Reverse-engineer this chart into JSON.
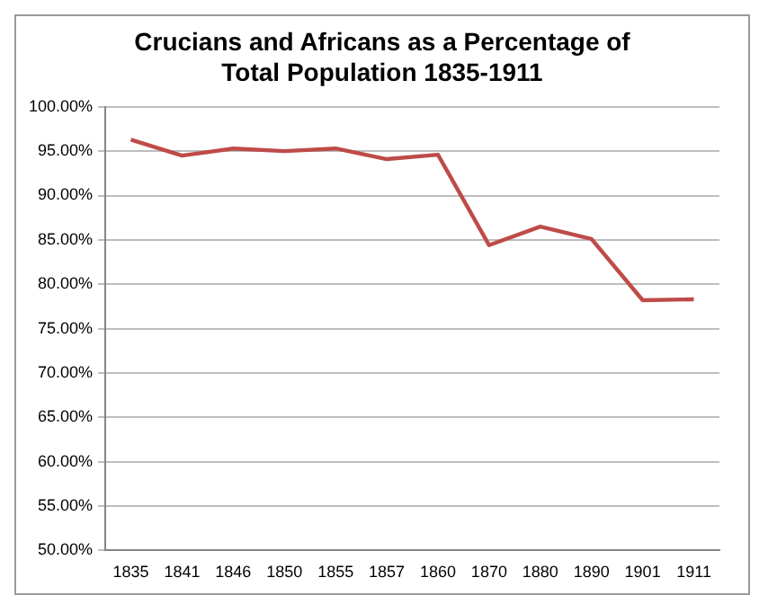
{
  "chart_data": {
    "type": "line",
    "title": "Crucians and Africans as a Percentage of Total Population 1835-1911",
    "categories": [
      "1835",
      "1841",
      "1846",
      "1850",
      "1855",
      "1857",
      "1860",
      "1870",
      "1880",
      "1890",
      "1901",
      "1911"
    ],
    "series": [
      {
        "color": "#be4b48",
        "values": [
          96.3,
          94.5,
          95.3,
          95.0,
          95.3,
          94.1,
          94.6,
          84.4,
          86.5,
          85.1,
          78.2,
          78.3
        ]
      }
    ],
    "ylim": [
      50,
      100
    ],
    "yticks": [
      {
        "value": 50,
        "label": "50.00%"
      },
      {
        "value": 55,
        "label": "55.00%"
      },
      {
        "value": 60,
        "label": "60.00%"
      },
      {
        "value": 65,
        "label": "65.00%"
      },
      {
        "value": 70,
        "label": "70.00%"
      },
      {
        "value": 75,
        "label": "75.00%"
      },
      {
        "value": 80,
        "label": "80.00%"
      },
      {
        "value": 85,
        "label": "85.00%"
      },
      {
        "value": 90,
        "label": "90.00%"
      },
      {
        "value": 95,
        "label": "95.00%"
      },
      {
        "value": 100,
        "label": "100.00%"
      }
    ],
    "grid": "y",
    "legend": false,
    "marker": "none",
    "line_style": "solid"
  }
}
